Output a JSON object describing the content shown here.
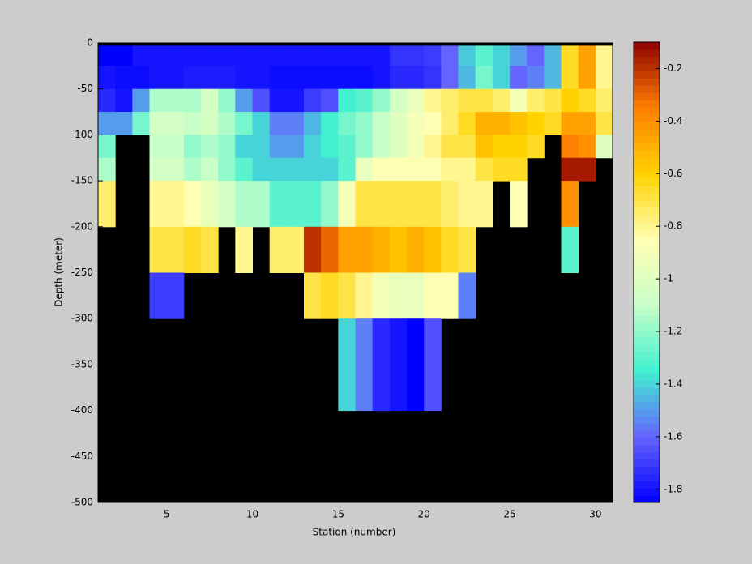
{
  "chart_data": {
    "type": "heatmap",
    "xlabel": "Station (number)",
    "ylabel": "Depth (meter)",
    "x": [
      1,
      2,
      3,
      4,
      5,
      6,
      7,
      8,
      9,
      10,
      11,
      12,
      13,
      14,
      15,
      16,
      17,
      18,
      19,
      20,
      21,
      22,
      23,
      24,
      25,
      26,
      27,
      28,
      29,
      30
    ],
    "y_edges": [
      -3,
      -25,
      -50,
      -75,
      -100,
      -125,
      -150,
      -200,
      -250,
      -300,
      -400
    ],
    "z": [
      [
        -1.85,
        -1.85,
        -1.8,
        -1.8,
        -1.8,
        -1.8,
        -1.8,
        -1.8,
        -1.8,
        -1.8,
        -1.8,
        -1.8,
        -1.8,
        -1.8,
        -1.8,
        -1.8,
        -1.8,
        -1.72,
        -1.72,
        -1.7,
        -1.6,
        -1.42,
        -1.3,
        -1.4,
        -1.5,
        -1.6,
        -1.45,
        -0.65,
        -0.45,
        -0.8
      ],
      [
        -1.8,
        -1.82,
        -1.82,
        -1.8,
        -1.8,
        -1.78,
        -1.78,
        -1.78,
        -1.8,
        -1.8,
        -1.82,
        -1.82,
        -1.82,
        -1.82,
        -1.82,
        -1.82,
        -1.8,
        -1.75,
        -1.75,
        -1.72,
        -1.6,
        -1.45,
        -1.25,
        -1.4,
        -1.6,
        -1.55,
        -1.45,
        -0.65,
        -0.45,
        -0.8
      ],
      [
        -1.75,
        -1.8,
        -1.5,
        -1.15,
        -1.15,
        -1.15,
        -1.05,
        -1.2,
        -1.5,
        -1.65,
        -1.8,
        -1.8,
        -1.7,
        -1.65,
        -1.35,
        -1.3,
        -1.2,
        -1.05,
        -0.95,
        -0.8,
        -0.75,
        -0.7,
        -0.7,
        -0.75,
        -0.9,
        -0.75,
        -0.7,
        -0.6,
        -0.65,
        -0.75
      ],
      [
        -1.5,
        -1.5,
        -1.25,
        -1.05,
        -1.05,
        -1.1,
        -1.05,
        -1.15,
        -1.25,
        -1.4,
        -1.55,
        -1.55,
        -1.45,
        -1.35,
        -1.25,
        -1.2,
        -1.1,
        -1.0,
        -0.9,
        -0.85,
        -0.75,
        -0.65,
        -0.5,
        -0.5,
        -0.55,
        -0.6,
        -0.65,
        -0.45,
        -0.45,
        -0.7
      ],
      [
        -1.25,
        null,
        null,
        -1.1,
        -1.1,
        -1.2,
        -1.15,
        -1.2,
        -1.4,
        -1.4,
        -1.5,
        -1.5,
        -1.4,
        -1.35,
        -1.3,
        -1.2,
        -1.1,
        -1.0,
        -0.9,
        -0.8,
        -0.7,
        -0.7,
        -0.55,
        -0.6,
        -0.6,
        -0.65,
        null,
        -0.35,
        -0.4,
        -1.0
      ],
      [
        -1.15,
        null,
        null,
        -1.05,
        -1.05,
        -1.15,
        -1.1,
        -1.2,
        -1.3,
        -1.4,
        -1.4,
        -1.4,
        -1.4,
        -1.4,
        -1.3,
        -0.95,
        -0.85,
        -0.85,
        -0.85,
        -0.85,
        -0.8,
        -0.8,
        -0.7,
        -0.65,
        -0.65,
        null,
        null,
        -0.15,
        -0.15,
        null
      ],
      [
        -0.75,
        null,
        null,
        -0.8,
        -0.8,
        -0.85,
        -0.95,
        -1.05,
        -1.15,
        -1.15,
        -1.3,
        -1.3,
        -1.3,
        -1.2,
        -0.9,
        -0.7,
        -0.7,
        -0.7,
        -0.7,
        -0.7,
        -0.75,
        -0.8,
        -0.8,
        null,
        -0.85,
        null,
        null,
        -0.4,
        null,
        null
      ],
      [
        null,
        null,
        null,
        -0.7,
        -0.7,
        -0.65,
        -0.7,
        null,
        -0.8,
        null,
        -0.75,
        -0.75,
        -0.2,
        -0.3,
        -0.45,
        -0.45,
        -0.5,
        -0.55,
        -0.5,
        -0.55,
        -0.65,
        -0.7,
        null,
        null,
        null,
        null,
        null,
        -1.3,
        null,
        null
      ],
      [
        null,
        null,
        null,
        -1.7,
        -1.7,
        null,
        null,
        null,
        null,
        null,
        null,
        null,
        -0.7,
        -0.65,
        -0.7,
        -0.8,
        -0.9,
        -0.95,
        -0.95,
        -0.85,
        -0.85,
        -1.55,
        null,
        null,
        null,
        null,
        null,
        null,
        null,
        null
      ],
      [
        null,
        null,
        null,
        null,
        null,
        null,
        null,
        null,
        null,
        null,
        null,
        null,
        null,
        null,
        -1.4,
        -1.55,
        -1.75,
        -1.8,
        -1.85,
        -1.65,
        null,
        null,
        null,
        null,
        null,
        null,
        null,
        null,
        null,
        null
      ]
    ],
    "xlim": [
      1,
      31
    ],
    "xticks": [
      5,
      10,
      15,
      20,
      25,
      30
    ],
    "ylim": [
      -500,
      0
    ],
    "yticks": [
      0,
      -50,
      -100,
      -150,
      -200,
      -250,
      -300,
      -350,
      -400,
      -450,
      -500
    ],
    "clim": [
      -1.85,
      -0.1
    ],
    "cticks": [
      -0.2,
      -0.4,
      -0.6,
      -0.8,
      -1,
      -1.2,
      -1.4,
      -1.6,
      -1.8
    ],
    "colormap": [
      "#0000ff",
      "#6464ff",
      "#40f0d0",
      "#c8ffc8",
      "#ffffb4",
      "#ffd200",
      "#ff8000",
      "#900000"
    ],
    "nan_color": "#000000"
  }
}
